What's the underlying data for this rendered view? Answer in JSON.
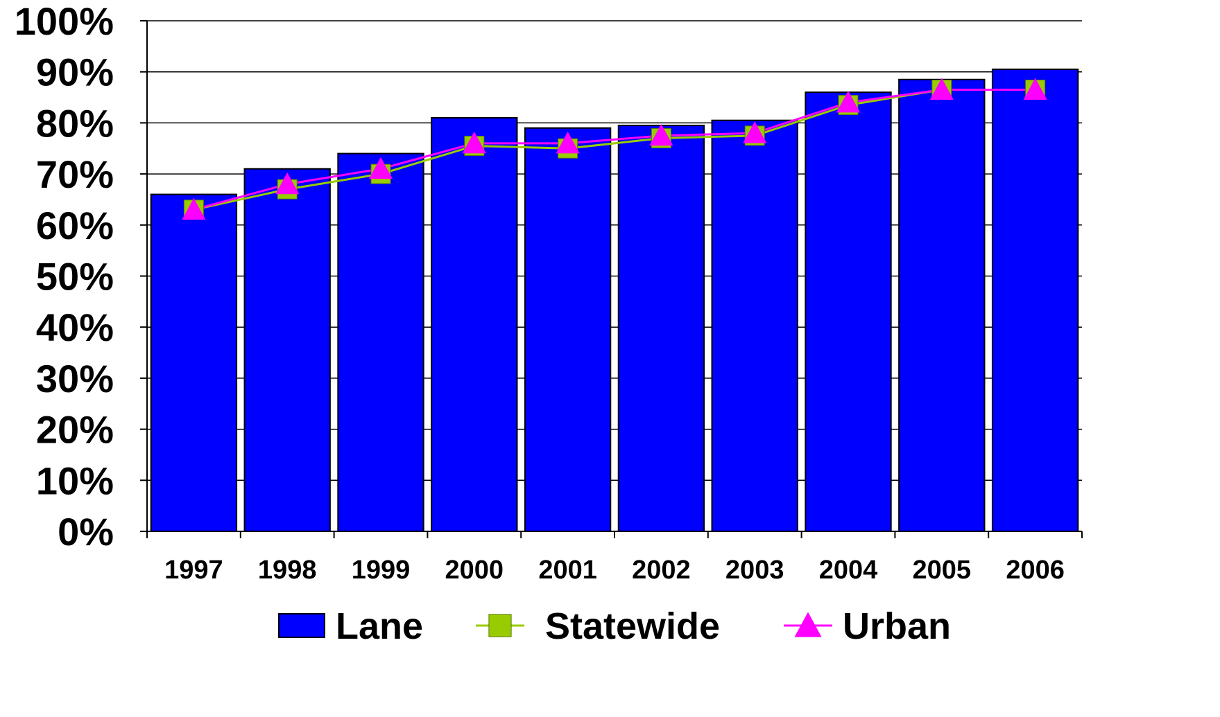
{
  "chart_data": {
    "type": "bar",
    "title": "",
    "xlabel": "",
    "ylabel": "",
    "categories": [
      "1997",
      "1998",
      "1999",
      "2000",
      "2001",
      "2002",
      "2003",
      "2004",
      "2005",
      "2006"
    ],
    "ylim": [
      0,
      100
    ],
    "y_ticks": [
      0,
      10,
      20,
      30,
      40,
      50,
      60,
      70,
      80,
      90,
      100
    ],
    "y_tick_labels": [
      "0%",
      "10%",
      "20%",
      "30%",
      "40%",
      "50%",
      "60%",
      "70%",
      "80%",
      "90%",
      "100%"
    ],
    "grid": "horizontal",
    "legend_position": "bottom",
    "series": [
      {
        "name": "Lane",
        "type": "bar",
        "color": "#0000FF",
        "marker": "none",
        "values": [
          66,
          71,
          74,
          81,
          79,
          79.5,
          80.5,
          86,
          88.5,
          90.5
        ]
      },
      {
        "name": "Statewide",
        "type": "line",
        "color": "#99CC00",
        "marker": "square",
        "values": [
          63,
          67,
          70,
          75.5,
          75,
          77,
          77.5,
          83.5,
          86.5,
          86.5
        ]
      },
      {
        "name": "Urban",
        "type": "line",
        "color": "#FF00FF",
        "marker": "triangle",
        "values": [
          63,
          68,
          71,
          76,
          76,
          77.5,
          78,
          84,
          86.5,
          86.5
        ]
      }
    ]
  }
}
